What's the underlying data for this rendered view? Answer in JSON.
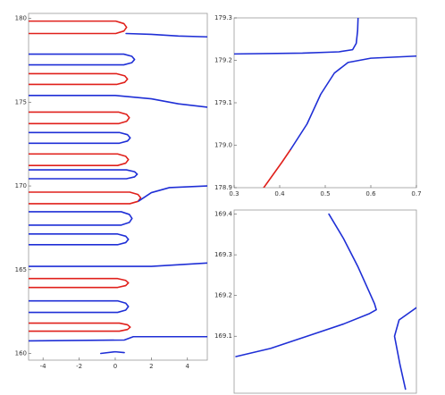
{
  "chart_data": [
    {
      "type": "line",
      "xlim": [
        -4.8,
        5.1
      ],
      "ylim": [
        159.6,
        180.3
      ],
      "xticks": [
        -4,
        -2,
        0,
        2,
        4
      ],
      "yticks": [
        160,
        165,
        170,
        175,
        180
      ],
      "series": [
        {
          "color": "#e0201b",
          "x": [
            -4.8,
            0.03,
            0.48,
            0.63,
            0.48,
            0.03,
            -4.8
          ],
          "values": [
            179.84,
            179.84,
            179.69,
            179.47,
            179.25,
            179.1,
            179.1
          ]
        },
        {
          "color": "#1f2fd6",
          "x": [
            0.6,
            2,
            3.5,
            5.1
          ],
          "values": [
            179.1,
            179.05,
            178.95,
            178.9
          ]
        },
        {
          "color": "#1f2fd6",
          "x": [
            -4.8,
            0.47,
            0.92,
            1.07,
            0.92,
            0.47,
            -4.8
          ],
          "values": [
            177.87,
            177.87,
            177.74,
            177.55,
            177.36,
            177.23,
            177.23
          ]
        },
        {
          "color": "#e0201b",
          "x": [
            -4.8,
            0.08,
            0.53,
            0.68,
            0.53,
            0.08,
            -4.8
          ],
          "values": [
            176.7,
            176.7,
            176.57,
            176.38,
            176.19,
            176.06,
            176.06
          ]
        },
        {
          "color": "#1f2fd6",
          "x": [
            -4.8,
            0,
            2,
            3.5,
            5.1
          ],
          "values": [
            175.4,
            175.4,
            175.2,
            174.9,
            174.7
          ]
        },
        {
          "color": "#e0201b",
          "x": [
            -4.8,
            0.18,
            0.63,
            0.78,
            0.63,
            0.18,
            -4.8
          ],
          "values": [
            174.41,
            174.41,
            174.27,
            174.07,
            173.86,
            173.72,
            173.72
          ]
        },
        {
          "color": "#1f2fd6",
          "x": [
            -4.8,
            0.23,
            0.68,
            0.83,
            0.68,
            0.23,
            -4.8
          ],
          "values": [
            173.19,
            173.19,
            173.06,
            172.87,
            172.68,
            172.55,
            172.55
          ]
        },
        {
          "color": "#e0201b",
          "x": [
            -4.8,
            0.13,
            0.58,
            0.73,
            0.58,
            0.13,
            -4.8
          ],
          "values": [
            171.91,
            171.91,
            171.77,
            171.57,
            171.36,
            171.22,
            171.22
          ]
        },
        {
          "color": "#1f2fd6",
          "x": [
            -4.8,
            0.62,
            1.07,
            1.22,
            1.07,
            0.62,
            -4.8
          ],
          "values": [
            170.96,
            170.96,
            170.85,
            170.7,
            170.54,
            170.43,
            170.43
          ]
        },
        {
          "color": "#e0201b",
          "x": [
            -4.8,
            0.81,
            1.26,
            1.41,
            1.26,
            0.81,
            -4.8
          ],
          "values": [
            169.63,
            169.63,
            169.49,
            169.29,
            169.08,
            168.94,
            168.94
          ]
        },
        {
          "color": "#1f2fd6",
          "x": [
            1.3,
            2,
            3,
            5.1
          ],
          "values": [
            169.1,
            169.6,
            169.9,
            170
          ]
        },
        {
          "color": "#1f2fd6",
          "x": [
            -4.8,
            0.33,
            0.78,
            0.93,
            0.78,
            0.33,
            -4.8
          ],
          "values": [
            168.46,
            168.46,
            168.3,
            168.06,
            167.82,
            167.66,
            167.66
          ]
        },
        {
          "color": "#1f2fd6",
          "x": [
            -4.8,
            0.13,
            0.58,
            0.73,
            0.58,
            0.13,
            -4.8
          ],
          "values": [
            167.13,
            167.13,
            167,
            166.81,
            166.62,
            166.49,
            166.49
          ]
        },
        {
          "color": "#1f2fd6",
          "x": [
            -4.8,
            2,
            5.1
          ],
          "values": [
            165.2,
            165.2,
            165.4
          ]
        },
        {
          "color": "#e0201b",
          "x": [
            -4.8,
            0.13,
            0.58,
            0.73,
            0.58,
            0.13,
            -4.8
          ],
          "values": [
            164.47,
            164.47,
            164.36,
            164.21,
            164.05,
            163.94,
            163.94
          ]
        },
        {
          "color": "#1f2fd6",
          "x": [
            -4.8,
            0.13,
            0.58,
            0.73,
            0.58,
            0.13,
            -4.8
          ],
          "values": [
            163.14,
            163.14,
            163,
            162.8,
            162.59,
            162.45,
            162.45
          ]
        },
        {
          "color": "#e0201b",
          "x": [
            -4.8,
            0.23,
            0.68,
            0.83,
            0.68,
            0.23,
            -4.8
          ],
          "values": [
            161.81,
            161.81,
            161.71,
            161.57,
            161.43,
            161.33,
            161.33
          ]
        },
        {
          "color": "#1f2fd6",
          "x": [
            -4.8,
            0.5,
            1,
            2,
            5.1
          ],
          "values": [
            160.75,
            160.8,
            161,
            161,
            161
          ]
        },
        {
          "color": "#1f2fd6",
          "x": [
            -0.8,
            0,
            0.5
          ],
          "values": [
            160,
            160.1,
            160.05
          ]
        }
      ]
    },
    {
      "type": "line",
      "xlim": [
        0.3,
        0.7
      ],
      "ylim": [
        178.9,
        179.3
      ],
      "xticks": [
        0.3,
        0.4,
        0.5,
        0.6,
        0.7
      ],
      "yticks": [
        {
          "value": 178.9,
          "label": "178.9"
        },
        {
          "value": 179,
          "label": "179.0"
        },
        179.1,
        179.2,
        179.3
      ],
      "series": [
        {
          "color": "#1f2fd6",
          "x": [
            0.3,
            0.45,
            0.53,
            0.56,
            0.568,
            0.571,
            0.572
          ],
          "values": [
            179.215,
            179.217,
            179.22,
            179.225,
            179.24,
            179.27,
            179.3
          ]
        },
        {
          "color": "#e0201b",
          "x": [
            0.365,
            0.385,
            0.405,
            0.424
          ],
          "values": [
            178.9,
            178.93,
            178.96,
            178.99
          ]
        },
        {
          "color": "#1f2fd6",
          "x": [
            0.424,
            0.46,
            0.49,
            0.52,
            0.55,
            0.6,
            0.7
          ],
          "values": [
            178.99,
            179.05,
            179.12,
            179.17,
            179.195,
            179.205,
            179.21
          ]
        }
      ]
    },
    {
      "type": "line",
      "xlim": [
        0,
        1
      ],
      "ylim": [
        168.96,
        169.41
      ],
      "yticks": [
        169.1,
        169.2,
        169.3,
        169.4
      ],
      "series": [
        {
          "color": "#1f2fd6",
          "x": [
            0.52,
            0.6,
            0.68,
            0.74,
            0.77,
            0.78,
            0.74,
            0.6,
            0.4,
            0.2,
            0.01
          ],
          "values": [
            169.4,
            169.34,
            169.27,
            169.21,
            169.18,
            169.165,
            169.155,
            169.13,
            169.1,
            169.07,
            169.05
          ]
        },
        {
          "color": "#1f2fd6",
          "x": [
            1,
            0.905,
            0.88,
            0.91,
            0.94
          ],
          "values": [
            169.17,
            169.14,
            169.1,
            169.03,
            168.97
          ]
        }
      ]
    }
  ]
}
